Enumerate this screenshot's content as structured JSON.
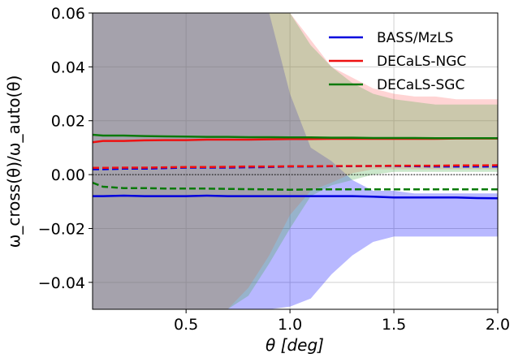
{
  "chart_data": {
    "type": "line",
    "xlabel": "θ [deg]",
    "ylabel": "ω_cross(θ)/ω_auto(θ)",
    "xlim": [
      0.05,
      2.0
    ],
    "ylim": [
      -0.05,
      0.06
    ],
    "xticks": [
      "0.5",
      "1.0",
      "1.5",
      "2.0"
    ],
    "yticks": [
      "−0.04",
      "−0.02",
      "0.00",
      "0.02",
      "0.04",
      "0.06"
    ],
    "grid": true,
    "legend_position": "top-right",
    "legend": [
      "BASS/MzLS",
      "DECaLS-NGC",
      "DECaLS-SGC"
    ],
    "x": [
      0.05,
      0.1,
      0.2,
      0.3,
      0.4,
      0.5,
      0.6,
      0.7,
      0.8,
      0.9,
      1.0,
      1.1,
      1.2,
      1.3,
      1.4,
      1.5,
      1.6,
      1.7,
      1.8,
      1.9,
      2.0
    ],
    "series": [
      {
        "name": "BASS/MzLS",
        "color": "#0000dd",
        "fill_color": "#0000ff",
        "solid": [
          -0.008,
          -0.008,
          -0.0078,
          -0.008,
          -0.008,
          -0.008,
          -0.0078,
          -0.008,
          -0.008,
          -0.008,
          -0.008,
          -0.008,
          -0.008,
          -0.008,
          -0.0082,
          -0.0085,
          -0.0085,
          -0.0085,
          -0.0085,
          -0.0087,
          -0.0088
        ],
        "dashed": [
          0.002,
          0.002,
          0.0022,
          0.0022,
          0.0024,
          0.0026,
          0.0026,
          0.0026,
          0.0027,
          0.0028,
          0.003,
          0.003,
          0.0031,
          0.0031,
          0.0032,
          0.0032,
          0.0031,
          0.003,
          0.003,
          0.003,
          0.003
        ],
        "band_upper": [
          0.06,
          0.06,
          0.06,
          0.06,
          0.06,
          0.06,
          0.06,
          0.06,
          0.06,
          0.06,
          0.03,
          0.01,
          0.005,
          -0.002,
          -0.006,
          -0.006,
          -0.007,
          -0.007,
          -0.007,
          -0.007,
          -0.007
        ],
        "band_lower": [
          -0.05,
          -0.05,
          -0.05,
          -0.05,
          -0.05,
          -0.05,
          -0.05,
          -0.05,
          -0.05,
          -0.05,
          -0.049,
          -0.046,
          -0.037,
          -0.03,
          -0.025,
          -0.023,
          -0.023,
          -0.023,
          -0.023,
          -0.023,
          -0.023
        ]
      },
      {
        "name": "DECaLS-NGC",
        "color": "#ee1111",
        "fill_color": "#ff6666",
        "solid": [
          0.012,
          0.0125,
          0.0125,
          0.0127,
          0.0128,
          0.0128,
          0.013,
          0.013,
          0.013,
          0.0131,
          0.0132,
          0.0132,
          0.0133,
          0.0133,
          0.0133,
          0.0133,
          0.0133,
          0.0133,
          0.0134,
          0.0134,
          0.0134
        ],
        "dashed": [
          0.0025,
          0.0025,
          0.0026,
          0.0026,
          0.0027,
          0.0028,
          0.0028,
          0.0029,
          0.003,
          0.003,
          0.0031,
          0.0031,
          0.0032,
          0.0032,
          0.0032,
          0.0033,
          0.0033,
          0.0033,
          0.0034,
          0.0034,
          0.0035
        ],
        "band_upper": [
          0.06,
          0.06,
          0.06,
          0.06,
          0.06,
          0.06,
          0.06,
          0.06,
          0.06,
          0.06,
          0.06,
          0.05,
          0.04,
          0.036,
          0.032,
          0.03,
          0.029,
          0.029,
          0.028,
          0.028,
          0.028
        ],
        "band_lower": [
          -0.05,
          -0.05,
          -0.05,
          -0.05,
          -0.05,
          -0.05,
          -0.05,
          -0.05,
          -0.042,
          -0.03,
          -0.015,
          -0.006,
          -0.003,
          0.0005,
          0.002,
          0.002,
          0.002,
          0.002,
          0.002,
          0.002,
          0.002
        ]
      },
      {
        "name": "DECaLS-SGC",
        "color": "#0a7a0a",
        "fill_color": "#44aa44",
        "solid": [
          0.0148,
          0.0145,
          0.0145,
          0.0143,
          0.0142,
          0.0141,
          0.014,
          0.014,
          0.0139,
          0.0139,
          0.0138,
          0.0138,
          0.0137,
          0.0137,
          0.0136,
          0.0136,
          0.0136,
          0.0135,
          0.0135,
          0.0135,
          0.0135
        ],
        "dashed": [
          -0.003,
          -0.0045,
          -0.005,
          -0.005,
          -0.0052,
          -0.0052,
          -0.0052,
          -0.0053,
          -0.0054,
          -0.0055,
          -0.0056,
          -0.0055,
          -0.0055,
          -0.0055,
          -0.0055,
          -0.0055,
          -0.0055,
          -0.0055,
          -0.0055,
          -0.0055,
          -0.0055
        ],
        "band_upper": [
          0.06,
          0.06,
          0.06,
          0.06,
          0.06,
          0.06,
          0.06,
          0.06,
          0.06,
          0.06,
          0.06,
          0.048,
          0.04,
          0.034,
          0.03,
          0.028,
          0.027,
          0.026,
          0.026,
          0.026,
          0.026
        ],
        "band_lower": [
          -0.05,
          -0.05,
          -0.05,
          -0.05,
          -0.05,
          -0.05,
          -0.05,
          -0.05,
          -0.045,
          -0.033,
          -0.02,
          -0.008,
          -0.004,
          -0.002,
          0.0,
          0.001,
          0.001,
          0.001,
          0.001,
          0.001,
          0.001
        ]
      }
    ],
    "reference_line": {
      "y": 0.0,
      "style": "dotted"
    }
  }
}
